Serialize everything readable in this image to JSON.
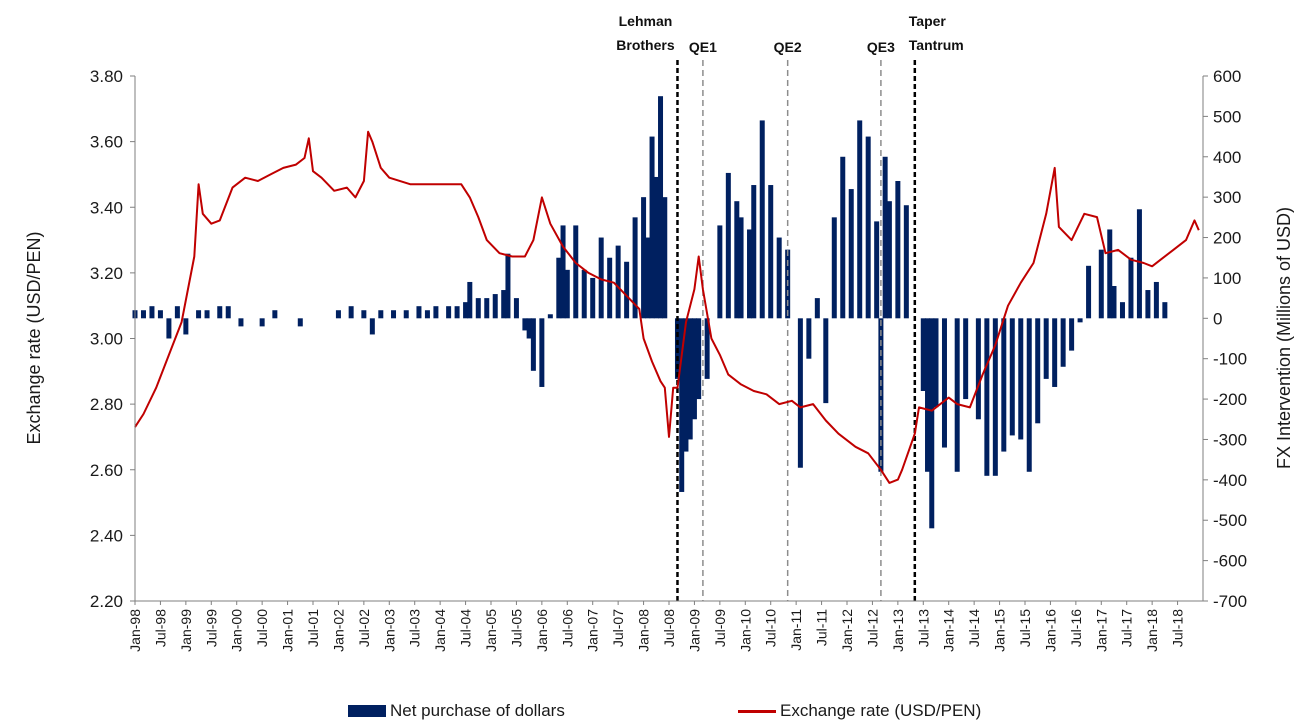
{
  "colors": {
    "bars": "#002060",
    "line": "#c00000",
    "event_major": "#000000",
    "event_minor": "#8c8c8c"
  },
  "legend": {
    "bars_label": "Net purchase of dollars",
    "line_label": "Exchange rate (USD/PEN)"
  },
  "chart_data": {
    "type": "bar+line",
    "y_left": {
      "label": "Exchange rate (USD/PEN)",
      "range": [
        2.2,
        3.8
      ],
      "ticks": [
        "2.20",
        "2.40",
        "2.60",
        "2.80",
        "3.00",
        "3.20",
        "3.40",
        "3.60",
        "3.80"
      ]
    },
    "y_right": {
      "label": "FX Intervention (Millions of USD)",
      "range": [
        -700,
        600
      ],
      "ticks": [
        "600",
        "500",
        "400",
        "300",
        "200",
        "100",
        "0",
        "-100",
        "-200",
        "-300",
        "-400",
        "-500",
        "-600",
        "-700"
      ]
    },
    "x_range": [
      "Jan-98",
      "Dec-18"
    ],
    "x_ticks": [
      "Jan-98",
      "Jul-98",
      "Jan-99",
      "Jul-99",
      "Jan-00",
      "Jul-00",
      "Jan-01",
      "Jul-01",
      "Jan-02",
      "Jul-02",
      "Jan-03",
      "Jul-03",
      "Jan-04",
      "Jul-04",
      "Jan-05",
      "Jul-05",
      "Jan-06",
      "Jul-06",
      "Jan-07",
      "Jul-07",
      "Jan-08",
      "Jul-08",
      "Jan-09",
      "Jul-09",
      "Jan-10",
      "Jul-10",
      "Jan-11",
      "Jul-11",
      "Jan-12",
      "Jul-12",
      "Jan-13",
      "Jul-13",
      "Jan-14",
      "Jul-14",
      "Jan-15",
      "Jul-15",
      "Jan-16",
      "Jul-16",
      "Jan-17",
      "Jul-17",
      "Jan-18",
      "Jul-18"
    ],
    "events": [
      {
        "label": "Lehman Brothers",
        "lines": [
          "Lehman",
          "Brothers"
        ],
        "date": "2008-09",
        "style": "major"
      },
      {
        "label": "QE1",
        "lines": [
          "QE1"
        ],
        "date": "2009-03",
        "style": "minor"
      },
      {
        "label": "QE2",
        "lines": [
          "QE2"
        ],
        "date": "2010-11",
        "style": "minor"
      },
      {
        "label": "QE3",
        "lines": [
          "QE3"
        ],
        "date": "2012-09",
        "style": "minor"
      },
      {
        "label": "Taper Tantrum",
        "lines": [
          "Taper",
          "Tantrum"
        ],
        "date": "2013-05",
        "style": "major"
      }
    ],
    "series": [
      {
        "name": "Exchange rate (USD/PEN)",
        "type": "line",
        "axis": "left",
        "points": [
          [
            "1998-01",
            2.73
          ],
          [
            "1998-03",
            2.77
          ],
          [
            "1998-06",
            2.85
          ],
          [
            "1998-09",
            2.95
          ],
          [
            "1998-12",
            3.05
          ],
          [
            "1999-03",
            3.25
          ],
          [
            "1999-04",
            3.47
          ],
          [
            "1999-05",
            3.38
          ],
          [
            "1999-07",
            3.35
          ],
          [
            "1999-09",
            3.36
          ],
          [
            "1999-12",
            3.46
          ],
          [
            "2000-03",
            3.49
          ],
          [
            "2000-06",
            3.48
          ],
          [
            "2000-09",
            3.5
          ],
          [
            "2000-12",
            3.52
          ],
          [
            "2001-03",
            3.53
          ],
          [
            "2001-05",
            3.55
          ],
          [
            "2001-06",
            3.61
          ],
          [
            "2001-07",
            3.51
          ],
          [
            "2001-09",
            3.49
          ],
          [
            "2001-12",
            3.45
          ],
          [
            "2002-03",
            3.46
          ],
          [
            "2002-05",
            3.43
          ],
          [
            "2002-07",
            3.48
          ],
          [
            "2002-08",
            3.63
          ],
          [
            "2002-09",
            3.6
          ],
          [
            "2002-11",
            3.52
          ],
          [
            "2003-01",
            3.49
          ],
          [
            "2003-06",
            3.47
          ],
          [
            "2003-12",
            3.47
          ],
          [
            "2004-03",
            3.47
          ],
          [
            "2004-06",
            3.47
          ],
          [
            "2004-08",
            3.43
          ],
          [
            "2004-10",
            3.37
          ],
          [
            "2004-12",
            3.3
          ],
          [
            "2005-03",
            3.26
          ],
          [
            "2005-06",
            3.25
          ],
          [
            "2005-09",
            3.25
          ],
          [
            "2005-11",
            3.3
          ],
          [
            "2006-01",
            3.43
          ],
          [
            "2006-03",
            3.35
          ],
          [
            "2006-06",
            3.28
          ],
          [
            "2006-09",
            3.23
          ],
          [
            "2006-12",
            3.2
          ],
          [
            "2007-03",
            3.18
          ],
          [
            "2007-06",
            3.17
          ],
          [
            "2007-09",
            3.13
          ],
          [
            "2007-12",
            3.09
          ],
          [
            "2008-01",
            3.0
          ],
          [
            "2008-03",
            2.93
          ],
          [
            "2008-05",
            2.87
          ],
          [
            "2008-06",
            2.85
          ],
          [
            "2008-07",
            2.7
          ],
          [
            "2008-08",
            2.85
          ],
          [
            "2008-09",
            2.85
          ],
          [
            "2008-11",
            3.05
          ],
          [
            "2009-01",
            3.15
          ],
          [
            "2009-02",
            3.25
          ],
          [
            "2009-03",
            3.15
          ],
          [
            "2009-05",
            3.0
          ],
          [
            "2009-07",
            2.95
          ],
          [
            "2009-09",
            2.89
          ],
          [
            "2009-12",
            2.86
          ],
          [
            "2010-03",
            2.84
          ],
          [
            "2010-06",
            2.83
          ],
          [
            "2010-09",
            2.8
          ],
          [
            "2010-12",
            2.81
          ],
          [
            "2011-02",
            2.79
          ],
          [
            "2011-05",
            2.8
          ],
          [
            "2011-08",
            2.75
          ],
          [
            "2011-11",
            2.71
          ],
          [
            "2012-03",
            2.67
          ],
          [
            "2012-06",
            2.65
          ],
          [
            "2012-09",
            2.6
          ],
          [
            "2012-11",
            2.56
          ],
          [
            "2013-01",
            2.57
          ],
          [
            "2013-02",
            2.6
          ],
          [
            "2013-05",
            2.71
          ],
          [
            "2013-06",
            2.79
          ],
          [
            "2013-09",
            2.78
          ],
          [
            "2014-01",
            2.82
          ],
          [
            "2014-03",
            2.8
          ],
          [
            "2014-06",
            2.79
          ],
          [
            "2014-09",
            2.89
          ],
          [
            "2014-12",
            2.98
          ],
          [
            "2015-03",
            3.1
          ],
          [
            "2015-06",
            3.17
          ],
          [
            "2015-09",
            3.23
          ],
          [
            "2015-12",
            3.38
          ],
          [
            "2016-02",
            3.52
          ],
          [
            "2016-03",
            3.34
          ],
          [
            "2016-06",
            3.3
          ],
          [
            "2016-09",
            3.38
          ],
          [
            "2016-12",
            3.37
          ],
          [
            "2017-02",
            3.26
          ],
          [
            "2017-05",
            3.27
          ],
          [
            "2017-08",
            3.24
          ],
          [
            "2017-11",
            3.23
          ],
          [
            "2018-01",
            3.22
          ],
          [
            "2018-03",
            3.24
          ],
          [
            "2018-06",
            3.27
          ],
          [
            "2018-09",
            3.3
          ],
          [
            "2018-11",
            3.36
          ],
          [
            "2018-12",
            3.33
          ]
        ]
      },
      {
        "name": "Net purchase of dollars",
        "type": "bar",
        "axis": "right",
        "points": [
          [
            "1998-01",
            20
          ],
          [
            "1998-03",
            20
          ],
          [
            "1998-05",
            30
          ],
          [
            "1998-07",
            20
          ],
          [
            "1998-09",
            -50
          ],
          [
            "1998-11",
            30
          ],
          [
            "1999-01",
            -40
          ],
          [
            "1999-04",
            20
          ],
          [
            "1999-06",
            20
          ],
          [
            "1999-09",
            30
          ],
          [
            "1999-11",
            30
          ],
          [
            "2000-02",
            -20
          ],
          [
            "2000-07",
            -20
          ],
          [
            "2000-10",
            20
          ],
          [
            "2001-04",
            -20
          ],
          [
            "2002-01",
            20
          ],
          [
            "2002-04",
            30
          ],
          [
            "2002-07",
            20
          ],
          [
            "2002-09",
            -40
          ],
          [
            "2002-11",
            20
          ],
          [
            "2003-02",
            20
          ],
          [
            "2003-05",
            20
          ],
          [
            "2003-08",
            30
          ],
          [
            "2003-10",
            20
          ],
          [
            "2003-12",
            30
          ],
          [
            "2004-03",
            30
          ],
          [
            "2004-05",
            30
          ],
          [
            "2004-07",
            40
          ],
          [
            "2004-08",
            90
          ],
          [
            "2004-10",
            50
          ],
          [
            "2004-12",
            50
          ],
          [
            "2005-02",
            60
          ],
          [
            "2005-04",
            70
          ],
          [
            "2005-05",
            160
          ],
          [
            "2005-07",
            50
          ],
          [
            "2005-09",
            -30
          ],
          [
            "2005-10",
            -50
          ],
          [
            "2005-11",
            -130
          ],
          [
            "2006-01",
            -170
          ],
          [
            "2006-03",
            10
          ],
          [
            "2006-05",
            150
          ],
          [
            "2006-06",
            230
          ],
          [
            "2006-07",
            120
          ],
          [
            "2006-09",
            230
          ],
          [
            "2006-11",
            120
          ],
          [
            "2007-01",
            100
          ],
          [
            "2007-03",
            200
          ],
          [
            "2007-05",
            150
          ],
          [
            "2007-07",
            180
          ],
          [
            "2007-09",
            140
          ],
          [
            "2007-11",
            250
          ],
          [
            "2008-01",
            300
          ],
          [
            "2008-02",
            200
          ],
          [
            "2008-03",
            450
          ],
          [
            "2008-04",
            350
          ],
          [
            "2008-05",
            550
          ],
          [
            "2008-06",
            300
          ],
          [
            "2008-09",
            -150
          ],
          [
            "2008-10",
            -430
          ],
          [
            "2008-11",
            -330
          ],
          [
            "2008-12",
            -300
          ],
          [
            "2009-01",
            -250
          ],
          [
            "2009-02",
            -200
          ],
          [
            "2009-04",
            -150
          ],
          [
            "2009-07",
            230
          ],
          [
            "2009-09",
            360
          ],
          [
            "2009-11",
            290
          ],
          [
            "2009-12",
            250
          ],
          [
            "2010-02",
            220
          ],
          [
            "2010-03",
            330
          ],
          [
            "2010-05",
            490
          ],
          [
            "2010-07",
            330
          ],
          [
            "2010-09",
            200
          ],
          [
            "2010-11",
            170
          ],
          [
            "2011-02",
            -370
          ],
          [
            "2011-04",
            -100
          ],
          [
            "2011-06",
            50
          ],
          [
            "2011-08",
            -210
          ],
          [
            "2011-10",
            250
          ],
          [
            "2011-12",
            400
          ],
          [
            "2012-02",
            320
          ],
          [
            "2012-04",
            490
          ],
          [
            "2012-06",
            450
          ],
          [
            "2012-08",
            240
          ],
          [
            "2012-09",
            -380
          ],
          [
            "2012-10",
            400
          ],
          [
            "2012-11",
            290
          ],
          [
            "2013-01",
            340
          ],
          [
            "2013-03",
            280
          ],
          [
            "2013-07",
            -180
          ],
          [
            "2013-08",
            -380
          ],
          [
            "2013-09",
            -520
          ],
          [
            "2013-10",
            -220
          ],
          [
            "2013-12",
            -320
          ],
          [
            "2014-03",
            -380
          ],
          [
            "2014-05",
            -200
          ],
          [
            "2014-08",
            -250
          ],
          [
            "2014-10",
            -390
          ],
          [
            "2014-12",
            -390
          ],
          [
            "2015-02",
            -330
          ],
          [
            "2015-04",
            -290
          ],
          [
            "2015-06",
            -300
          ],
          [
            "2015-08",
            -380
          ],
          [
            "2015-10",
            -260
          ],
          [
            "2015-12",
            -150
          ],
          [
            "2016-02",
            -170
          ],
          [
            "2016-04",
            -120
          ],
          [
            "2016-06",
            -80
          ],
          [
            "2016-08",
            -10
          ],
          [
            "2016-10",
            130
          ],
          [
            "2017-01",
            170
          ],
          [
            "2017-03",
            220
          ],
          [
            "2017-04",
            80
          ],
          [
            "2017-06",
            40
          ],
          [
            "2017-08",
            150
          ],
          [
            "2017-10",
            270
          ],
          [
            "2017-12",
            70
          ],
          [
            "2018-02",
            90
          ],
          [
            "2018-04",
            40
          ]
        ]
      }
    ]
  }
}
